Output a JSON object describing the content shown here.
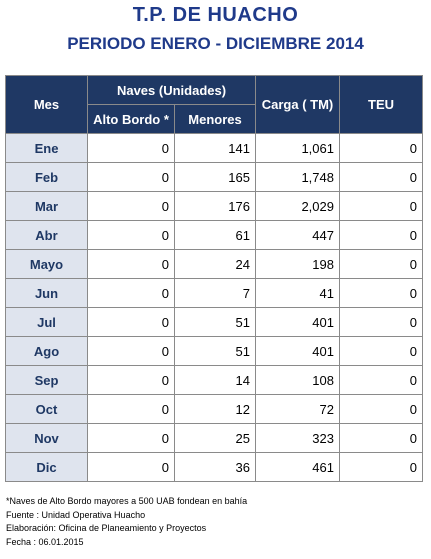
{
  "title": "T.P. DE HUACHO",
  "subtitle": "PERIODO ENERO - DICIEMBRE 2014",
  "headers": {
    "mes": "Mes",
    "naves": "Naves (Unidades)",
    "alto_bordo": "Alto Bordo *",
    "menores": "Menores",
    "carga": "Carga ( TM)",
    "teu": "TEU"
  },
  "rows": [
    {
      "mes": "Ene",
      "alto_bordo": "0",
      "menores": "141",
      "carga": "1,061",
      "teu": "0"
    },
    {
      "mes": "Feb",
      "alto_bordo": "0",
      "menores": "165",
      "carga": "1,748",
      "teu": "0"
    },
    {
      "mes": "Mar",
      "alto_bordo": "0",
      "menores": "176",
      "carga": "2,029",
      "teu": "0"
    },
    {
      "mes": "Abr",
      "alto_bordo": "0",
      "menores": "61",
      "carga": "447",
      "teu": "0"
    },
    {
      "mes": "Mayo",
      "alto_bordo": "0",
      "menores": "24",
      "carga": "198",
      "teu": "0"
    },
    {
      "mes": "Jun",
      "alto_bordo": "0",
      "menores": "7",
      "carga": "41",
      "teu": "0"
    },
    {
      "mes": "Jul",
      "alto_bordo": "0",
      "menores": "51",
      "carga": "401",
      "teu": "0"
    },
    {
      "mes": "Ago",
      "alto_bordo": "0",
      "menores": "51",
      "carga": "401",
      "teu": "0"
    },
    {
      "mes": "Sep",
      "alto_bordo": "0",
      "menores": "14",
      "carga": "108",
      "teu": "0"
    },
    {
      "mes": "Oct",
      "alto_bordo": "0",
      "menores": "12",
      "carga": "72",
      "teu": "0"
    },
    {
      "mes": "Nov",
      "alto_bordo": "0",
      "menores": "25",
      "carga": "323",
      "teu": "0"
    },
    {
      "mes": "Dic",
      "alto_bordo": "0",
      "menores": "36",
      "carga": "461",
      "teu": "0"
    }
  ],
  "notes": [
    "*Naves de Alto Bordo mayores a 500 UAB fondean en bahía",
    "Fuente : Unidad Operativa Huacho",
    "Elaboración: Oficina de Planeamiento y Proyectos",
    "Fecha : 06.01.2015"
  ]
}
